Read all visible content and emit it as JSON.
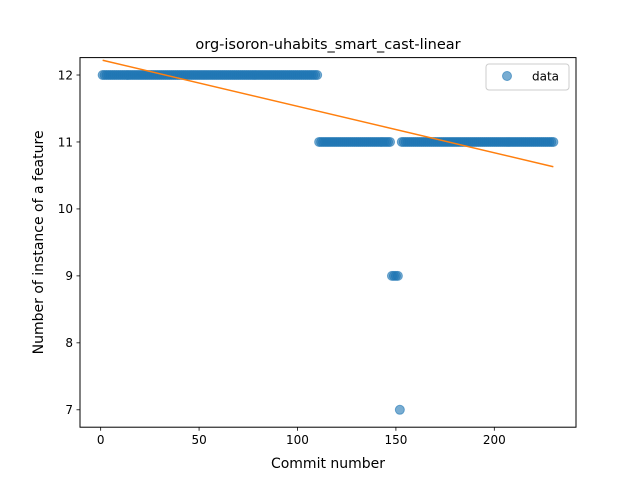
{
  "chart_data": {
    "type": "scatter",
    "title": "org-isoron-uhabits_smart_cast-linear",
    "xlabel": "Commit number",
    "ylabel": "Number of instance of a feature",
    "xlim": [
      -10.5,
      241.5
    ],
    "ylim": [
      6.74,
      12.26
    ],
    "xticks": [
      0,
      50,
      100,
      150,
      200
    ],
    "yticks": [
      7,
      8,
      9,
      10,
      11,
      12
    ],
    "grid": false,
    "legend_position": "top-right",
    "series": [
      {
        "name": "data",
        "kind": "points",
        "color": "#1f77b4",
        "segments": [
          {
            "x_start": 1,
            "x_end": 110,
            "y": 12
          },
          {
            "x_start": 111,
            "x_end": 147,
            "y": 11
          },
          {
            "x_start": 148,
            "x_end": 151,
            "y": 9
          },
          {
            "x_start": 152,
            "x_end": 152,
            "y": 7
          },
          {
            "x_start": 153,
            "x_end": 230,
            "y": 11
          }
        ]
      },
      {
        "kind": "line",
        "color": "#ff7f0e",
        "x": [
          1,
          230
        ],
        "y": [
          12.22,
          10.63
        ]
      }
    ]
  }
}
